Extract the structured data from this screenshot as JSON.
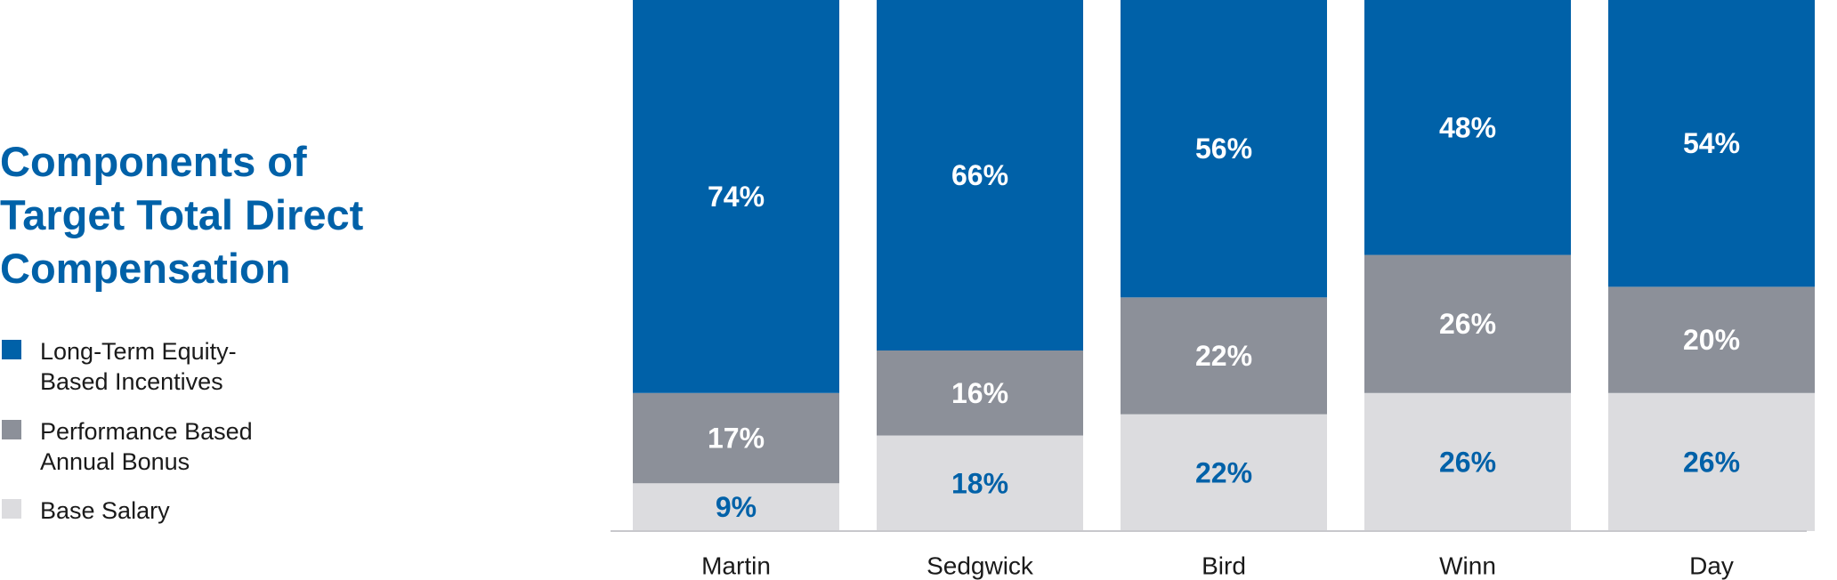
{
  "chart_data": {
    "type": "bar",
    "stacked": true,
    "title_lines": [
      "Components of",
      "Target Total Direct",
      "Compensation"
    ],
    "categories": [
      "Martin",
      "Sedgwick",
      "Bird",
      "Winn",
      "Day"
    ],
    "series": [
      {
        "name": "Base Salary",
        "legend_lines": [
          "Base Salary"
        ],
        "color": "#dcdcdf",
        "label_color": "#0061a8",
        "values": [
          9,
          18,
          22,
          26,
          26
        ],
        "labels": [
          "9%",
          "18%",
          "22%",
          "26%",
          "26%"
        ]
      },
      {
        "name": "Performance Based Annual Bonus",
        "legend_lines": [
          "Performance Based",
          "Annual Bonus"
        ],
        "color": "#8c9099",
        "label_color": "#ffffff",
        "values": [
          17,
          16,
          22,
          26,
          20
        ],
        "labels": [
          "17%",
          "16%",
          "22%",
          "26%",
          "20%"
        ]
      },
      {
        "name": "Long-Term Equity-Based Incentives",
        "legend_lines": [
          "Long-Term Equity-",
          "Based Incentives"
        ],
        "color": "#0061a8",
        "label_color": "#ffffff",
        "values": [
          74,
          66,
          56,
          48,
          54
        ],
        "labels": [
          "74%",
          "66%",
          "56%",
          "48%",
          "54%"
        ]
      }
    ],
    "ylim": [
      0,
      100
    ],
    "legend_position": "left",
    "grid": false
  }
}
